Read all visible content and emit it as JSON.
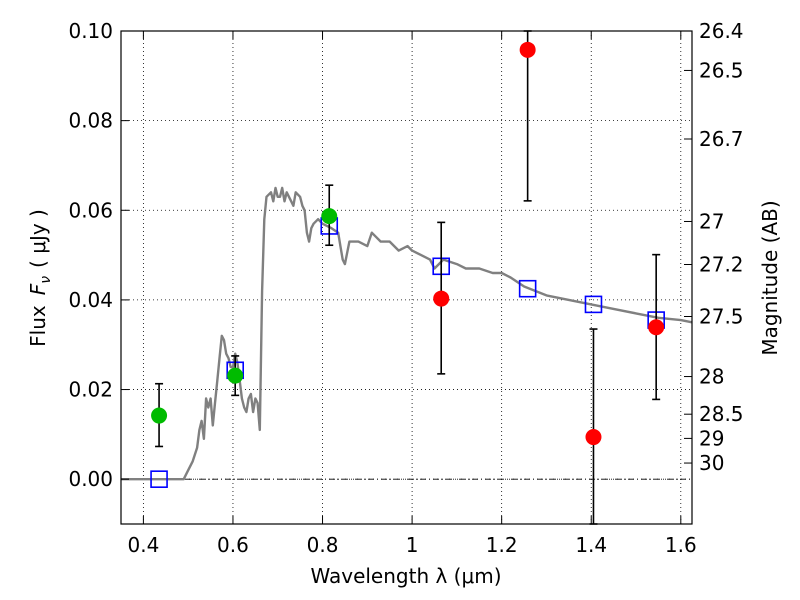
{
  "chart_data": {
    "type": "scatter",
    "xlabel": "Wavelength  λ (μm)",
    "ylabel_parts": [
      "Flux",
      "F",
      "ν",
      "(  μJy )"
    ],
    "ylabel_right": "Magnitude (AB)",
    "xlim": [
      0.35,
      1.625
    ],
    "ylim": [
      -0.01,
      0.1
    ],
    "grid": true,
    "x_ticks": [
      0.4,
      0.6,
      0.8,
      1.0,
      1.2,
      1.4,
      1.6
    ],
    "x_tick_labels": [
      "0.4",
      "0.6",
      "0.8",
      "1",
      "1.2",
      "1.4",
      "1.6"
    ],
    "y_ticks": [
      0.0,
      0.02,
      0.04,
      0.06,
      0.08,
      0.1
    ],
    "y_tick_labels": [
      "0.00",
      "0.02",
      "0.04",
      "0.06",
      "0.08",
      "0.10"
    ],
    "right_ticks": [
      {
        "label": "26.4",
        "flux": 0.1
      },
      {
        "label": "26.5",
        "flux": 0.0912
      },
      {
        "label": "26.7",
        "flux": 0.0759
      },
      {
        "label": "27",
        "flux": 0.0575
      },
      {
        "label": "27.2",
        "flux": 0.0479
      },
      {
        "label": "27.5",
        "flux": 0.0363
      },
      {
        "label": "28",
        "flux": 0.0229
      },
      {
        "label": "28.5",
        "flux": 0.0145
      },
      {
        "label": "29",
        "flux": 0.0091
      },
      {
        "label": "30",
        "flux": 0.0036
      }
    ],
    "model_sed": {
      "color": "#808080",
      "points": [
        [
          0.35,
          0.0
        ],
        [
          0.49,
          0.0
        ],
        [
          0.5,
          0.002
        ],
        [
          0.51,
          0.004
        ],
        [
          0.52,
          0.007
        ],
        [
          0.525,
          0.011
        ],
        [
          0.53,
          0.013
        ],
        [
          0.535,
          0.009
        ],
        [
          0.54,
          0.018
        ],
        [
          0.545,
          0.016
        ],
        [
          0.55,
          0.018
        ],
        [
          0.555,
          0.012
        ],
        [
          0.56,
          0.017
        ],
        [
          0.565,
          0.022
        ],
        [
          0.57,
          0.027
        ],
        [
          0.575,
          0.032
        ],
        [
          0.58,
          0.031
        ],
        [
          0.585,
          0.028
        ],
        [
          0.59,
          0.027
        ],
        [
          0.595,
          0.025
        ],
        [
          0.6,
          0.025
        ],
        [
          0.605,
          0.028
        ],
        [
          0.61,
          0.026
        ],
        [
          0.615,
          0.022
        ],
        [
          0.62,
          0.018
        ],
        [
          0.625,
          0.016
        ],
        [
          0.63,
          0.015
        ],
        [
          0.635,
          0.018
        ],
        [
          0.64,
          0.019
        ],
        [
          0.645,
          0.015
        ],
        [
          0.65,
          0.018
        ],
        [
          0.655,
          0.017
        ],
        [
          0.66,
          0.011
        ],
        [
          0.665,
          0.042
        ],
        [
          0.67,
          0.058
        ],
        [
          0.675,
          0.063
        ],
        [
          0.685,
          0.064
        ],
        [
          0.69,
          0.062
        ],
        [
          0.695,
          0.065
        ],
        [
          0.7,
          0.063
        ],
        [
          0.705,
          0.063
        ],
        [
          0.71,
          0.065
        ],
        [
          0.715,
          0.062
        ],
        [
          0.72,
          0.064
        ],
        [
          0.73,
          0.062
        ],
        [
          0.735,
          0.061
        ],
        [
          0.74,
          0.064
        ],
        [
          0.75,
          0.063
        ],
        [
          0.755,
          0.061
        ],
        [
          0.76,
          0.06
        ],
        [
          0.765,
          0.055
        ],
        [
          0.77,
          0.053
        ],
        [
          0.775,
          0.056
        ],
        [
          0.78,
          0.057
        ],
        [
          0.79,
          0.058
        ],
        [
          0.8,
          0.057
        ],
        [
          0.82,
          0.056
        ],
        [
          0.835,
          0.055
        ],
        [
          0.84,
          0.052
        ],
        [
          0.845,
          0.049
        ],
        [
          0.85,
          0.048
        ],
        [
          0.86,
          0.053
        ],
        [
          0.88,
          0.053
        ],
        [
          0.9,
          0.052
        ],
        [
          0.91,
          0.055
        ],
        [
          0.92,
          0.054
        ],
        [
          0.93,
          0.053
        ],
        [
          0.95,
          0.053
        ],
        [
          0.97,
          0.051
        ],
        [
          0.99,
          0.052
        ],
        [
          1.0,
          0.051
        ],
        [
          1.02,
          0.05
        ],
        [
          1.04,
          0.049
        ],
        [
          1.05,
          0.047
        ],
        [
          1.07,
          0.049
        ],
        [
          1.1,
          0.048
        ],
        [
          1.12,
          0.047
        ],
        [
          1.15,
          0.047
        ],
        [
          1.18,
          0.046
        ],
        [
          1.2,
          0.046
        ],
        [
          1.22,
          0.045
        ],
        [
          1.25,
          0.043
        ],
        [
          1.3,
          0.041
        ],
        [
          1.35,
          0.04
        ],
        [
          1.4,
          0.039
        ],
        [
          1.45,
          0.038
        ],
        [
          1.5,
          0.037
        ],
        [
          1.55,
          0.036
        ],
        [
          1.6,
          0.0355
        ],
        [
          1.625,
          0.035
        ]
      ]
    },
    "model_boxes": {
      "color": "#0000ff",
      "points": [
        [
          0.435,
          0.0
        ],
        [
          0.605,
          0.0243
        ],
        [
          0.815,
          0.0565
        ],
        [
          1.065,
          0.0475
        ],
        [
          1.258,
          0.0425
        ],
        [
          1.405,
          0.039
        ],
        [
          1.545,
          0.0355
        ]
      ]
    },
    "series": [
      {
        "color": "#00bb00",
        "points": [
          {
            "x": 0.435,
            "y": 0.0142,
            "lo": 0.0073,
            "hi": 0.0213
          },
          {
            "x": 0.605,
            "y": 0.0231,
            "lo": 0.0187,
            "hi": 0.0275
          },
          {
            "x": 0.815,
            "y": 0.0587,
            "lo": 0.0522,
            "hi": 0.0656
          }
        ]
      },
      {
        "color": "#ff0000",
        "points": [
          {
            "x": 1.065,
            "y": 0.0403,
            "lo": 0.0235,
            "hi": 0.0573
          },
          {
            "x": 1.258,
            "y": 0.0958,
            "lo": 0.0621,
            "hi": 0.1
          },
          {
            "x": 1.405,
            "y": 0.0094,
            "lo": -0.01,
            "hi": 0.0335
          },
          {
            "x": 1.545,
            "y": 0.0339,
            "lo": 0.0178,
            "hi": 0.0501
          }
        ]
      }
    ]
  }
}
